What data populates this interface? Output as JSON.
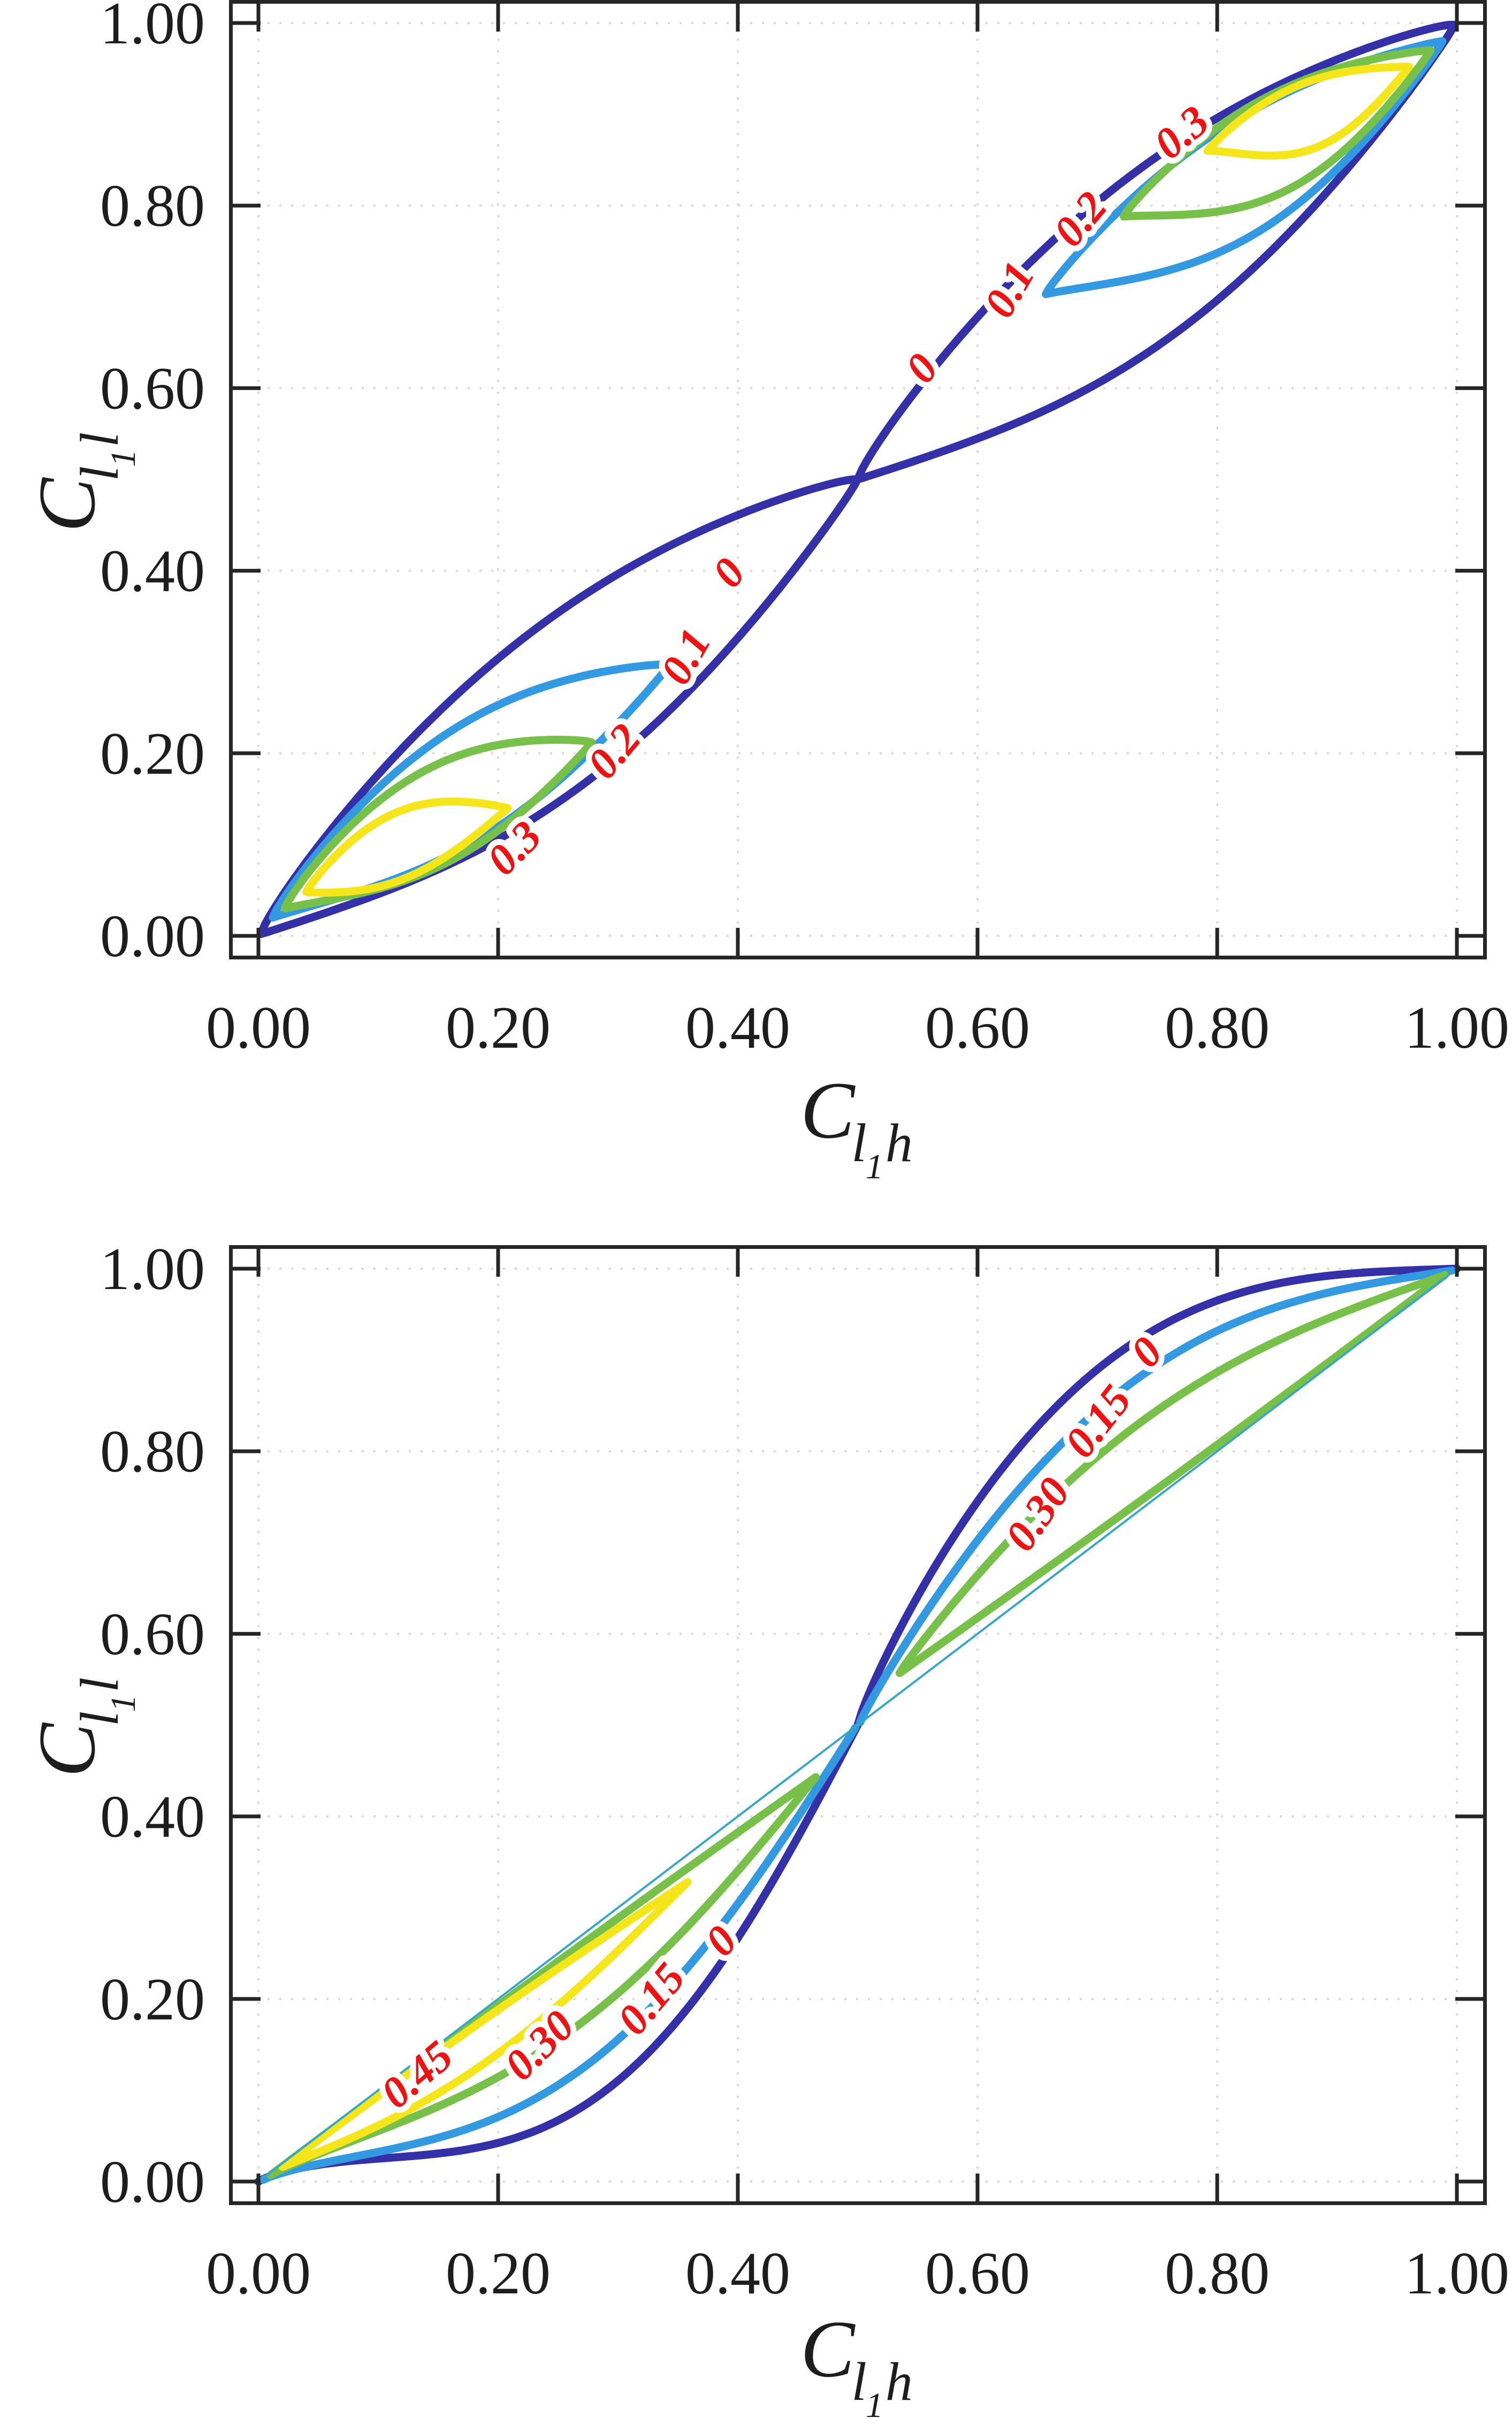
{
  "figure": {
    "background": "#ffffff",
    "axis_color": "#262626",
    "grid_color": "#d9d9d9",
    "tick_label_color": "#1d1d1d",
    "contour_label_color": "#ee1212",
    "diag_line_color": "#38a6c9"
  },
  "chart_data": [
    {
      "type": "contour",
      "panel": "top",
      "xlabel": {
        "base": "C",
        "sub1": "l",
        "sub1sub": "1",
        "sub2": "h"
      },
      "ylabel": {
        "base": "C",
        "sub1": "l",
        "sub1sub": "1",
        "sub2": "l"
      },
      "xlim": [
        -0.025,
        1.025
      ],
      "ylim": [
        -0.026,
        1.026
      ],
      "xticks": {
        "values": [
          0,
          0.2,
          0.4,
          0.6,
          0.8,
          1.0
        ],
        "labels": [
          "0.00",
          "0.20",
          "0.40",
          "0.60",
          "0.80",
          "1.00"
        ]
      },
      "yticks": {
        "values": [
          0,
          0.2,
          0.4,
          0.6,
          0.8,
          1.0
        ],
        "labels": [
          "0.00",
          "0.20",
          "0.40",
          "0.60",
          "0.80",
          "1.00"
        ]
      },
      "levels": [
        0,
        0.1,
        0.2,
        0.3
      ],
      "level_colors": [
        "#3430a8",
        "#3399e0",
        "#77c04a",
        "#f5e61c"
      ],
      "grid": true,
      "contours": [
        {
          "level": "0",
          "color": "#3430a8",
          "closed": true,
          "chord": [
            0.002,
            0.002,
            0.5,
            0.5
          ],
          "a_up": 0.105,
          "up_skew": 0.45,
          "a_dn": 0.105,
          "dn_skew": 0.55,
          "p": 0.85
        },
        {
          "level": "0",
          "color": "#3430a8",
          "closed": true,
          "chord": [
            0.5,
            0.5,
            0.998,
            0.998
          ],
          "a_up": 0.105,
          "up_skew": 0.45,
          "a_dn": 0.105,
          "dn_skew": 0.55,
          "p": 0.85
        },
        {
          "level": "0.1",
          "color": "#3399e0",
          "closed": true,
          "chord": [
            0.012,
            0.02,
            0.343,
            0.297
          ],
          "a_up": 0.08,
          "up_skew": 0.45,
          "a_dn": 0.058,
          "dn_skew": 0.55,
          "p": 0.9
        },
        {
          "level": "0.1",
          "color": "#3399e0",
          "closed": true,
          "chord": [
            0.657,
            0.703,
            0.988,
            0.98
          ],
          "a_up": 0.058,
          "up_skew": 0.45,
          "a_dn": 0.08,
          "dn_skew": 0.55,
          "p": 0.9
        },
        {
          "level": "0.2",
          "color": "#77c04a",
          "closed": true,
          "chord": [
            0.022,
            0.03,
            0.278,
            0.212
          ],
          "a_up": 0.068,
          "up_skew": 0.45,
          "a_dn": 0.046,
          "dn_skew": 0.55,
          "p": 0.9
        },
        {
          "level": "0.2",
          "color": "#77c04a",
          "closed": true,
          "chord": [
            0.722,
            0.788,
            0.978,
            0.97
          ],
          "a_up": 0.046,
          "up_skew": 0.45,
          "a_dn": 0.068,
          "dn_skew": 0.55,
          "p": 0.9
        },
        {
          "level": "0.3",
          "color": "#f5e61c",
          "closed": true,
          "chord": [
            0.04,
            0.048,
            0.208,
            0.14
          ],
          "a_up": 0.046,
          "up_skew": 0.45,
          "a_dn": 0.03,
          "dn_skew": 0.5,
          "p": 0.95
        },
        {
          "level": "0.3",
          "color": "#f5e61c",
          "closed": true,
          "chord": [
            0.792,
            0.86,
            0.96,
            0.952
          ],
          "a_up": 0.03,
          "up_skew": 0.45,
          "a_dn": 0.046,
          "dn_skew": 0.55,
          "p": 0.95
        }
      ],
      "labels": [
        {
          "text": "0",
          "x": 0.402,
          "y": 0.388,
          "rot": -52
        },
        {
          "text": "0",
          "x": 0.563,
          "y": 0.612,
          "rot": -52
        },
        {
          "text": "0.1",
          "x": 0.367,
          "y": 0.298,
          "rot": -60
        },
        {
          "text": "0.1",
          "x": 0.637,
          "y": 0.7,
          "rot": -60
        },
        {
          "text": "0.2",
          "x": 0.306,
          "y": 0.192,
          "rot": -50
        },
        {
          "text": "0.2",
          "x": 0.695,
          "y": 0.775,
          "rot": -50
        },
        {
          "text": "0.3",
          "x": 0.222,
          "y": 0.085,
          "rot": -45
        },
        {
          "text": "0.3",
          "x": 0.778,
          "y": 0.868,
          "rot": -40
        }
      ]
    },
    {
      "type": "contour",
      "panel": "bottom",
      "xlabel": {
        "base": "C",
        "sub1": "l",
        "sub1sub": "1",
        "sub2": "h"
      },
      "ylabel": {
        "base": "C",
        "sub1": "l",
        "sub1sub": "1",
        "sub2": "l"
      },
      "xlim": [
        -0.025,
        1.025
      ],
      "ylim": [
        -0.026,
        1.026
      ],
      "xticks": {
        "values": [
          0,
          0.2,
          0.4,
          0.6,
          0.8,
          1.0
        ],
        "labels": [
          "0.00",
          "0.20",
          "0.40",
          "0.60",
          "0.80",
          "1.00"
        ]
      },
      "yticks": {
        "values": [
          0,
          0.2,
          0.4,
          0.6,
          0.8,
          1.0
        ],
        "labels": [
          "0.00",
          "0.20",
          "0.40",
          "0.60",
          "0.80",
          "1.00"
        ]
      },
      "levels": [
        0,
        0.15,
        0.3,
        0.45
      ],
      "level_colors": [
        "#3430a8",
        "#3399e0",
        "#77c04a",
        "#f5e61c"
      ],
      "grid": true,
      "diagonal_line": {
        "from": [
          0,
          0
        ],
        "to": [
          1,
          1
        ],
        "color": "#38a6c9",
        "width": 4
      },
      "contours": [
        {
          "level": "0",
          "color": "#3430a8",
          "closed": false,
          "chord": [
            0.0,
            0.0,
            0.5,
            0.5
          ],
          "a_up": 0,
          "up_skew": 0.5,
          "a_dn": 0.19,
          "dn_skew": 0.58,
          "p": 1.0
        },
        {
          "level": "0",
          "color": "#3430a8",
          "closed": false,
          "chord": [
            0.5,
            0.5,
            1.0,
            1.0
          ],
          "a_up": 0.19,
          "up_skew": 0.42,
          "a_dn": 0,
          "dn_skew": 0.5,
          "p": 1.0
        },
        {
          "level": "0.15",
          "color": "#3399e0",
          "closed": false,
          "chord": [
            0.004,
            0.002,
            0.498,
            0.497
          ],
          "a_up": 0,
          "up_skew": 0.5,
          "a_dn": 0.145,
          "dn_skew": 0.55,
          "p": 1.0
        },
        {
          "level": "0.15",
          "color": "#3399e0",
          "closed": false,
          "chord": [
            0.502,
            0.503,
            0.996,
            0.998
          ],
          "a_up": 0.145,
          "up_skew": 0.45,
          "a_dn": 0,
          "dn_skew": 0.5,
          "p": 1.0
        },
        {
          "level": "0.30",
          "color": "#77c04a",
          "closed": true,
          "chord": [
            0.01,
            0.007,
            0.465,
            0.443
          ],
          "a_up": 0.004,
          "up_skew": 0.5,
          "a_dn": 0.082,
          "dn_skew": 0.55,
          "p": 1.0
        },
        {
          "level": "0.30",
          "color": "#77c04a",
          "closed": true,
          "chord": [
            0.535,
            0.557,
            0.99,
            0.993
          ],
          "a_up": 0.082,
          "up_skew": 0.45,
          "a_dn": 0.004,
          "dn_skew": 0.5,
          "p": 1.0
        },
        {
          "level": "0.45",
          "color": "#f5e61c",
          "closed": true,
          "chord": [
            0.02,
            0.016,
            0.358,
            0.328
          ],
          "a_up": 0.006,
          "up_skew": 0.5,
          "a_dn": 0.042,
          "dn_skew": 0.5,
          "p": 1.0
        }
      ],
      "labels": [
        {
          "text": "0",
          "x": 0.395,
          "y": 0.253,
          "rot": -48
        },
        {
          "text": "0",
          "x": 0.75,
          "y": 0.898,
          "rot": -48
        },
        {
          "text": "0.15",
          "x": 0.337,
          "y": 0.19,
          "rot": -50
        },
        {
          "text": "0.15",
          "x": 0.71,
          "y": 0.823,
          "rot": -52
        },
        {
          "text": "0.30",
          "x": 0.243,
          "y": 0.138,
          "rot": -45
        },
        {
          "text": "0.30",
          "x": 0.66,
          "y": 0.722,
          "rot": -55
        },
        {
          "text": "0.45",
          "x": 0.14,
          "y": 0.105,
          "rot": -40
        }
      ]
    }
  ]
}
